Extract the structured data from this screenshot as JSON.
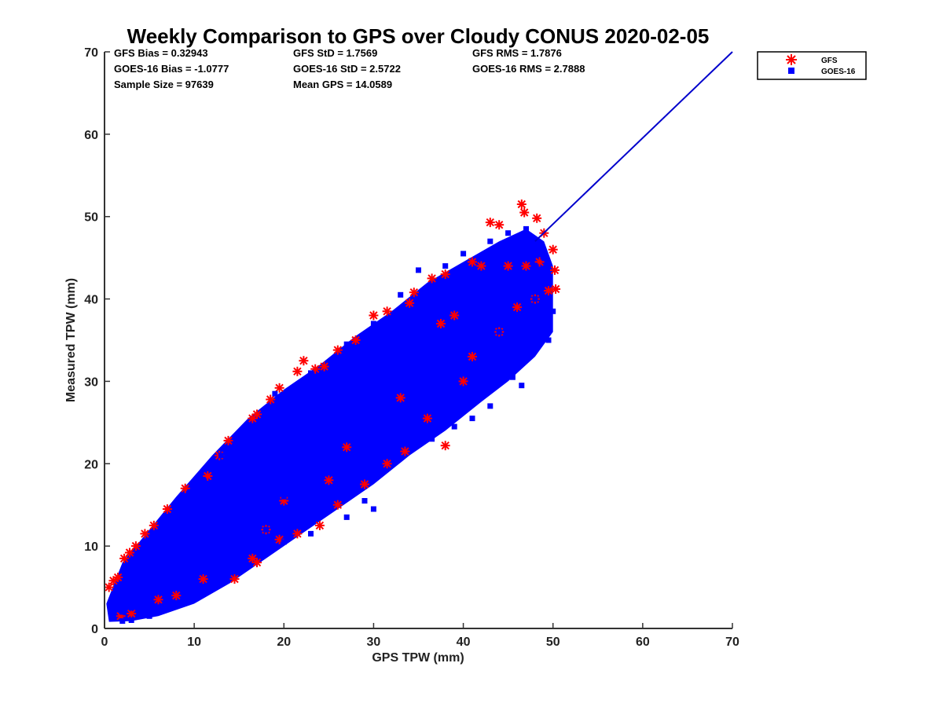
{
  "chart_data": {
    "type": "scatter",
    "title": "Weekly Comparison to GPS over Cloudy CONUS 2020-02-05",
    "xlabel": "GPS TPW (mm)",
    "ylabel": "Measured TPW (mm)",
    "xlim": [
      0,
      70
    ],
    "ylim": [
      0,
      70
    ],
    "xticks": [
      "0",
      "10",
      "20",
      "30",
      "40",
      "50",
      "60",
      "70"
    ],
    "yticks": [
      "0",
      "10",
      "20",
      "30",
      "40",
      "50",
      "60",
      "70"
    ],
    "grid": false,
    "legend_position": "outside-top-right",
    "stats": {
      "gfs_bias": "GFS Bias = 0.32943",
      "gfs_std": "GFS StD = 1.7569",
      "gfs_rms": "GFS RMS = 1.7876",
      "goes_bias": "GOES-16 Bias = -1.0777",
      "goes_std": "GOES-16 StD = 2.5722",
      "goes_rms": "GOES-16 RMS = 2.7888",
      "sample_size": "Sample Size = 97639",
      "mean_gps": "Mean GPS = 14.0589"
    },
    "series": [
      {
        "name": "GFS",
        "marker": "asterisk",
        "color": "#ff0000",
        "points": [
          [
            0.5,
            5.0
          ],
          [
            1.0,
            5.8
          ],
          [
            1.5,
            6.2
          ],
          [
            2.2,
            8.5
          ],
          [
            2.8,
            9.2
          ],
          [
            3.5,
            10.0
          ],
          [
            4.5,
            11.5
          ],
          [
            5.5,
            12.5
          ],
          [
            7.0,
            14.5
          ],
          [
            9.0,
            17.0
          ],
          [
            11.5,
            18.5
          ],
          [
            12.8,
            21.0
          ],
          [
            13.8,
            22.8
          ],
          [
            16.5,
            25.5
          ],
          [
            17.0,
            26.0
          ],
          [
            18.5,
            27.8
          ],
          [
            19.5,
            29.2
          ],
          [
            21.5,
            31.2
          ],
          [
            22.2,
            32.5
          ],
          [
            23.5,
            31.5
          ],
          [
            24.5,
            31.8
          ],
          [
            26.0,
            33.8
          ],
          [
            28.0,
            35.0
          ],
          [
            30.0,
            38.0
          ],
          [
            31.5,
            38.5
          ],
          [
            34.0,
            39.5
          ],
          [
            34.5,
            40.8
          ],
          [
            36.5,
            42.5
          ],
          [
            38.0,
            43.0
          ],
          [
            41.0,
            44.5
          ],
          [
            43.0,
            49.3
          ],
          [
            44.0,
            49.0
          ],
          [
            46.5,
            51.5
          ],
          [
            46.8,
            50.5
          ],
          [
            48.2,
            49.8
          ],
          [
            49.0,
            48.0
          ],
          [
            50.0,
            46.0
          ],
          [
            50.2,
            43.5
          ],
          [
            50.3,
            41.2
          ],
          [
            49.5,
            41.0
          ],
          [
            48.5,
            44.5
          ],
          [
            47.0,
            44.0
          ],
          [
            42.0,
            44.0
          ],
          [
            14.5,
            6.0
          ],
          [
            16.5,
            8.5
          ],
          [
            17.0,
            8.0
          ],
          [
            19.5,
            10.8
          ],
          [
            21.5,
            11.5
          ],
          [
            24.0,
            12.5
          ],
          [
            26.0,
            15.0
          ],
          [
            29.0,
            17.5
          ],
          [
            31.5,
            20.0
          ],
          [
            33.5,
            21.5
          ],
          [
            38.0,
            22.2
          ],
          [
            40.0,
            30.0
          ],
          [
            41.0,
            33.0
          ],
          [
            44.0,
            36.0
          ],
          [
            46.0,
            39.0
          ],
          [
            48.0,
            40.0
          ],
          [
            8.0,
            4.0
          ],
          [
            11.0,
            6.0
          ],
          [
            6.0,
            3.5
          ],
          [
            3.0,
            1.8
          ],
          [
            1.8,
            1.5
          ],
          [
            25.0,
            18.0
          ],
          [
            27.0,
            22.0
          ],
          [
            33.0,
            28.0
          ],
          [
            36.0,
            25.5
          ],
          [
            20.0,
            15.5
          ],
          [
            18.0,
            12.0
          ],
          [
            45.0,
            44.0
          ],
          [
            37.5,
            37.0
          ],
          [
            39.0,
            38.0
          ]
        ]
      },
      {
        "name": "GOES-16",
        "marker": "square",
        "color": "#0000ff",
        "points": [
          [
            1.0,
            1.5
          ],
          [
            2.0,
            2.0
          ],
          [
            3.0,
            2.5
          ],
          [
            4.0,
            3.0
          ],
          [
            5.0,
            4.0
          ],
          [
            6.0,
            4.5
          ],
          [
            7.0,
            5.5
          ],
          [
            8.0,
            6.0
          ],
          [
            10.0,
            7.5
          ],
          [
            12.0,
            9.5
          ],
          [
            14.0,
            11.0
          ],
          [
            16.0,
            13.0
          ],
          [
            18.0,
            14.0
          ],
          [
            20.0,
            16.0
          ],
          [
            22.0,
            18.0
          ],
          [
            24.0,
            20.0
          ],
          [
            26.0,
            21.0
          ],
          [
            28.0,
            23.0
          ],
          [
            30.0,
            25.0
          ],
          [
            32.0,
            27.0
          ],
          [
            34.0,
            28.5
          ],
          [
            36.0,
            30.0
          ],
          [
            38.0,
            31.0
          ],
          [
            40.0,
            33.0
          ],
          [
            42.0,
            34.0
          ],
          [
            44.0,
            36.0
          ],
          [
            46.0,
            38.0
          ],
          [
            48.0,
            40.0
          ],
          [
            50.0,
            38.5
          ],
          [
            49.5,
            35.0
          ],
          [
            46.5,
            29.5
          ],
          [
            45.5,
            30.5
          ],
          [
            43.0,
            27.0
          ],
          [
            41.0,
            25.5
          ],
          [
            39.0,
            24.5
          ],
          [
            36.5,
            23.0
          ],
          [
            34.0,
            22.5
          ],
          [
            32.0,
            21.5
          ],
          [
            28.0,
            18.5
          ],
          [
            25.0,
            16.5
          ],
          [
            21.0,
            14.0
          ],
          [
            18.0,
            12.0
          ],
          [
            17.0,
            10.5
          ],
          [
            15.0,
            8.5
          ],
          [
            13.0,
            6.5
          ],
          [
            12.0,
            5.5
          ],
          [
            10.0,
            4.5
          ],
          [
            8.0,
            3.0
          ],
          [
            5.0,
            1.5
          ],
          [
            3.0,
            1.0
          ],
          [
            2.0,
            0.9
          ],
          [
            8.0,
            15.0
          ],
          [
            9.5,
            16.5
          ],
          [
            11.0,
            18.0
          ],
          [
            13.0,
            21.0
          ],
          [
            15.0,
            22.5
          ],
          [
            19.0,
            28.5
          ],
          [
            23.0,
            31.0
          ],
          [
            27.0,
            34.5
          ],
          [
            30.0,
            37.0
          ],
          [
            33.0,
            40.5
          ],
          [
            35.0,
            43.5
          ],
          [
            38.0,
            44.0
          ],
          [
            40.0,
            45.5
          ],
          [
            43.0,
            47.0
          ],
          [
            45.0,
            48.0
          ],
          [
            47.0,
            48.5
          ],
          [
            49.0,
            45.0
          ],
          [
            48.0,
            44.0
          ],
          [
            35.0,
            37.0
          ],
          [
            37.0,
            40.0
          ],
          [
            31.0,
            35.0
          ],
          [
            25.0,
            30.0
          ],
          [
            20.0,
            25.0
          ],
          [
            16.0,
            20.0
          ],
          [
            12.0,
            15.0
          ],
          [
            9.0,
            11.0
          ],
          [
            6.0,
            8.0
          ],
          [
            4.0,
            6.0
          ],
          [
            2.0,
            4.0
          ],
          [
            25.0,
            23.0
          ],
          [
            29.0,
            26.0
          ],
          [
            33.0,
            31.0
          ],
          [
            37.0,
            35.0
          ],
          [
            41.0,
            38.0
          ],
          [
            22.0,
            21.0
          ],
          [
            18.0,
            18.0
          ],
          [
            14.0,
            14.5
          ],
          [
            10.0,
            11.0
          ],
          [
            7.0,
            8.5
          ],
          [
            30.0,
            14.5
          ],
          [
            29.0,
            15.5
          ],
          [
            27.0,
            13.5
          ],
          [
            23.0,
            11.5
          ],
          [
            20.0,
            10.5
          ],
          [
            43.0,
            32.0
          ],
          [
            47.0,
            35.0
          ]
        ]
      }
    ],
    "reference_line": {
      "from": [
        48,
        47
      ],
      "to": [
        70,
        70
      ],
      "color": "#0000cc"
    }
  }
}
